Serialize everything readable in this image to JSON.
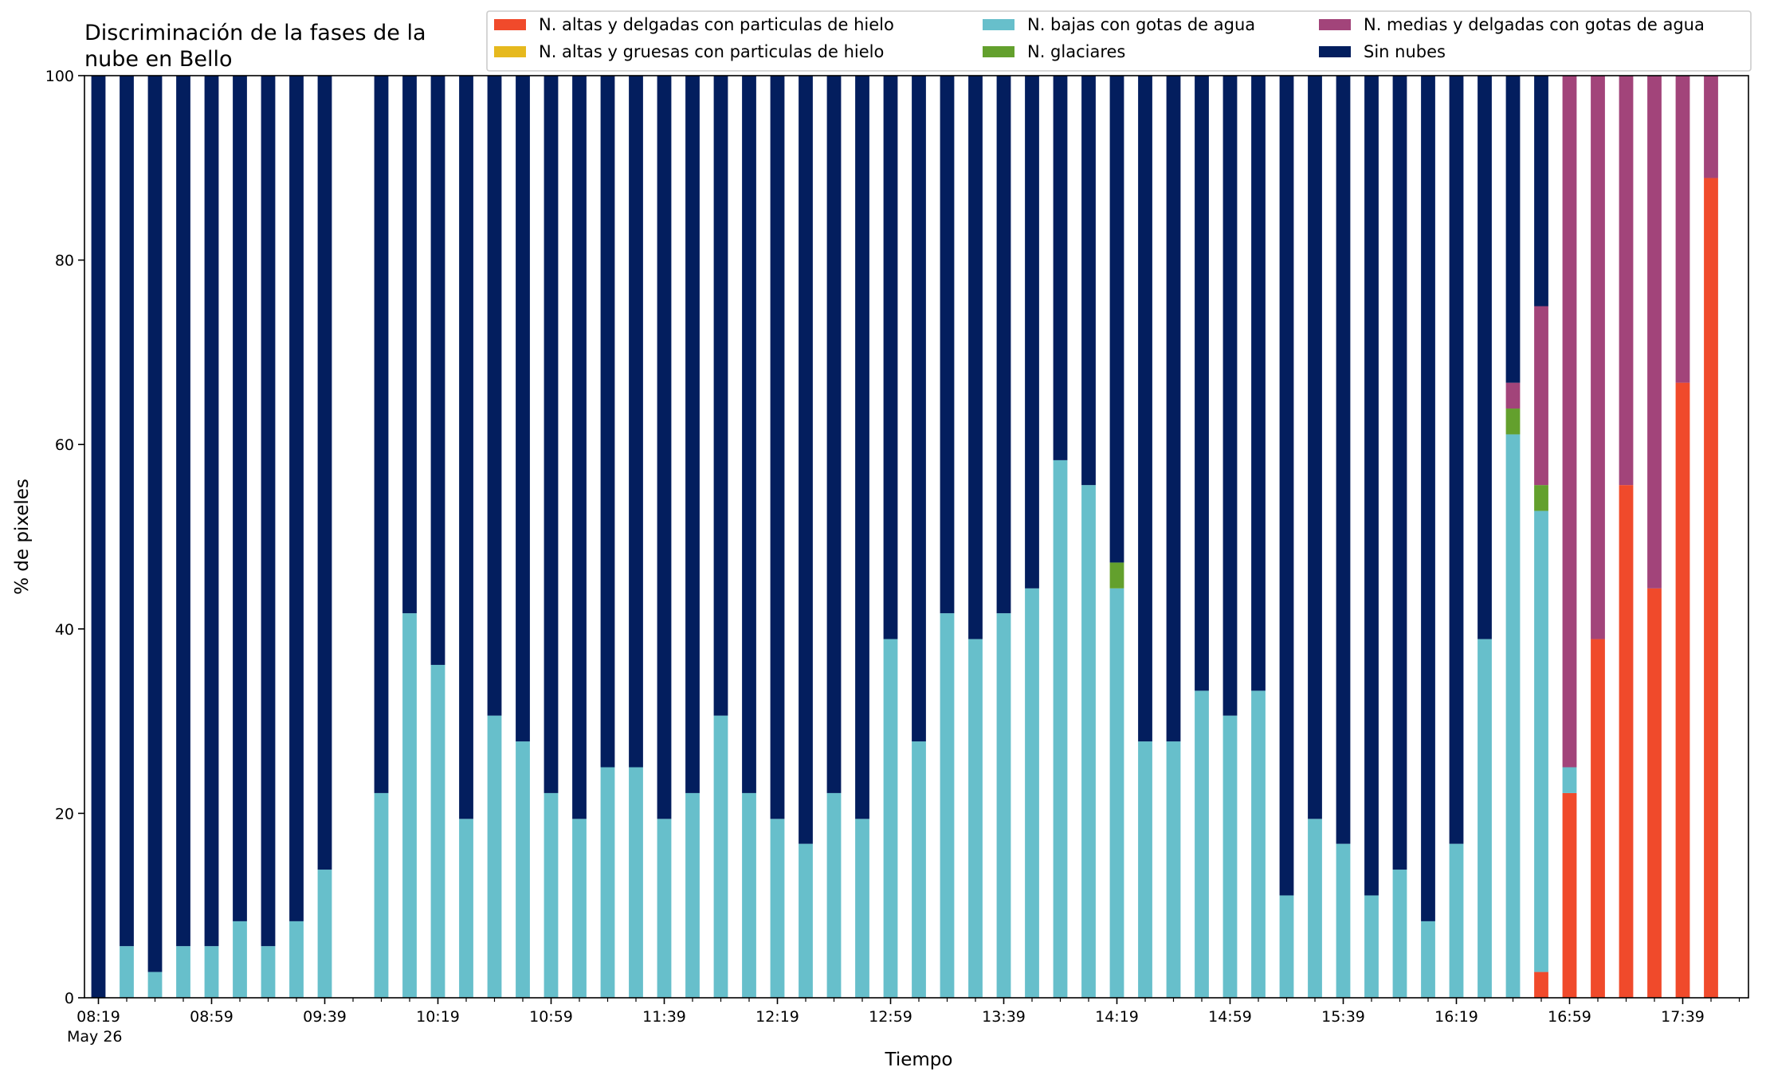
{
  "chart_data": {
    "type": "bar",
    "stacked": true,
    "title_line1": "Discriminación de la fases de la",
    "title_line2": "nube en Bello",
    "xlabel": "Tiempo",
    "ylabel": "% de pixeles",
    "ylim": [
      0,
      100
    ],
    "yticks": [
      0,
      20,
      40,
      60,
      80,
      100
    ],
    "xtick_labels": [
      "08:19",
      "08:59",
      "09:39",
      "10:19",
      "10:59",
      "11:39",
      "12:19",
      "12:59",
      "13:39",
      "14:19",
      "14:59",
      "15:39",
      "16:19",
      "16:59",
      "17:39"
    ],
    "xtick_date": "May 26",
    "bar_count": 58,
    "gaps": [
      9
    ],
    "legend_placement": "top-right",
    "series": [
      {
        "name": "N. altas y delgadas con particulas de hielo",
        "color": "#f04a2b",
        "values": [
          0,
          0,
          0,
          0,
          0,
          0,
          0,
          0,
          0,
          0,
          0,
          0,
          0,
          0,
          0,
          0,
          0,
          0,
          0,
          0,
          0,
          0,
          0,
          0,
          0,
          0,
          0,
          0,
          0,
          0,
          0,
          0,
          0,
          0,
          0,
          0,
          0,
          0,
          0,
          0,
          0,
          0,
          0,
          0,
          0,
          0,
          0,
          0,
          0,
          0,
          0,
          2.8,
          22.2,
          38.9,
          55.6,
          44.4,
          66.7,
          88.9
        ]
      },
      {
        "name": "N. altas y gruesas con particulas de hielo",
        "color": "#e6b91e",
        "values": [
          0,
          0,
          0,
          0,
          0,
          0,
          0,
          0,
          0,
          0,
          0,
          0,
          0,
          0,
          0,
          0,
          0,
          0,
          0,
          0,
          0,
          0,
          0,
          0,
          0,
          0,
          0,
          0,
          0,
          0,
          0,
          0,
          0,
          0,
          0,
          0,
          0,
          0,
          0,
          0,
          0,
          0,
          0,
          0,
          0,
          0,
          0,
          0,
          0,
          0,
          0,
          0,
          0,
          0,
          0,
          0,
          0,
          0
        ]
      },
      {
        "name": "N. bajas con gotas de agua",
        "color": "#67bfcb",
        "values": [
          0,
          5.6,
          2.8,
          5.6,
          5.6,
          8.3,
          5.6,
          8.3,
          13.9,
          0,
          22.2,
          41.7,
          36.1,
          19.4,
          30.6,
          27.8,
          22.2,
          19.4,
          25,
          25,
          19.4,
          22.2,
          30.6,
          22.2,
          19.4,
          16.7,
          22.2,
          19.4,
          38.9,
          27.8,
          41.7,
          38.9,
          41.7,
          44.4,
          58.3,
          55.6,
          44.4,
          27.8,
          27.8,
          33.3,
          30.6,
          33.3,
          11.1,
          19.4,
          16.7,
          11.1,
          13.9,
          8.3,
          16.7,
          38.9,
          61.1,
          50,
          2.8,
          0,
          0,
          0,
          0,
          0
        ]
      },
      {
        "name": "N. glaciares",
        "color": "#63a02d",
        "values": [
          0,
          0,
          0,
          0,
          0,
          0,
          0,
          0,
          0,
          0,
          0,
          0,
          0,
          0,
          0,
          0,
          0,
          0,
          0,
          0,
          0,
          0,
          0,
          0,
          0,
          0,
          0,
          0,
          0,
          0,
          0,
          0,
          0,
          0,
          0,
          0,
          2.8,
          0,
          0,
          0,
          0,
          0,
          0,
          0,
          0,
          0,
          0,
          0,
          0,
          0,
          2.8,
          2.8,
          0,
          0,
          0,
          0,
          0,
          0
        ]
      },
      {
        "name": "N. medias y delgadas con gotas de agua",
        "color": "#a2447a",
        "values": [
          0,
          0,
          0,
          0,
          0,
          0,
          0,
          0,
          0,
          0,
          0,
          0,
          0,
          0,
          0,
          0,
          0,
          0,
          0,
          0,
          0,
          0,
          0,
          0,
          0,
          0,
          0,
          0,
          0,
          0,
          0,
          0,
          0,
          0,
          0,
          0,
          0,
          0,
          0,
          0,
          0,
          0,
          0,
          0,
          0,
          0,
          0,
          0,
          0,
          0,
          2.8,
          19.4,
          75,
          61.1,
          44.4,
          55.6,
          33.3,
          11.1
        ]
      },
      {
        "name": "Sin nubes",
        "color": "#031e5e",
        "values": [
          100,
          94.4,
          97.2,
          94.4,
          94.4,
          91.7,
          94.4,
          91.7,
          86.1,
          0,
          77.8,
          58.3,
          63.9,
          80.6,
          69.4,
          72.2,
          77.8,
          80.6,
          75,
          75,
          80.6,
          77.8,
          69.4,
          77.8,
          80.6,
          83.3,
          77.8,
          80.6,
          61.1,
          72.2,
          58.3,
          61.1,
          58.3,
          55.6,
          41.7,
          44.4,
          52.8,
          72.2,
          72.2,
          66.7,
          69.4,
          66.7,
          88.9,
          80.6,
          83.3,
          88.9,
          86.1,
          91.7,
          83.3,
          61.1,
          33.3,
          25,
          0,
          0,
          0,
          0,
          0,
          0
        ]
      }
    ]
  }
}
